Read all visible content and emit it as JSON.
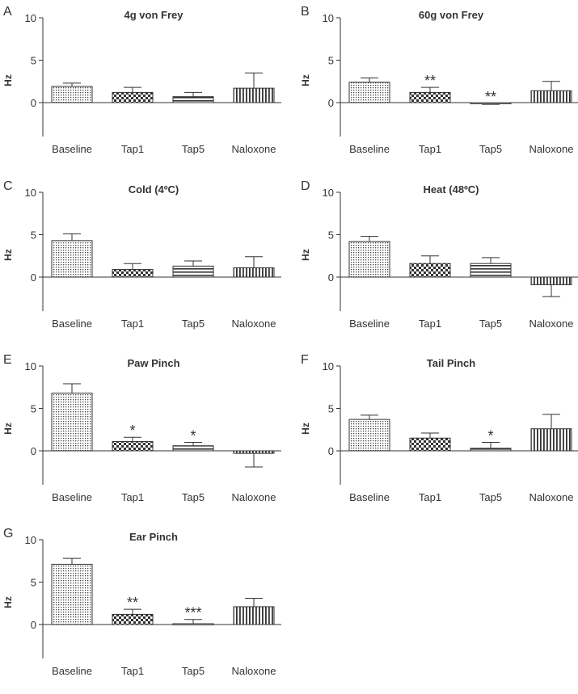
{
  "figure": {
    "colors": {
      "axis": "#333333",
      "bar_stroke": "#333333"
    }
  },
  "chart_data": [
    {
      "type": "bar",
      "panel_letter": "A",
      "title": "4g von Frey",
      "xlabel": "",
      "ylabel": "Hz",
      "ylim": [
        -4,
        10
      ],
      "yticks": [
        0,
        5,
        10
      ],
      "grid": false,
      "categories": [
        "Baseline",
        "Tap1",
        "Tap5",
        "Naloxone"
      ],
      "patterns": [
        "dots",
        "checker",
        "hlines",
        "vlines"
      ],
      "values": [
        1.9,
        1.2,
        0.7,
        1.7
      ],
      "errors": [
        0.4,
        0.6,
        0.5,
        1.8
      ],
      "annotations": [
        "",
        "",
        "",
        ""
      ]
    },
    {
      "type": "bar",
      "panel_letter": "B",
      "title": "60g von Frey",
      "xlabel": "",
      "ylabel": "Hz",
      "ylim": [
        -4,
        10
      ],
      "yticks": [
        0,
        5,
        10
      ],
      "grid": false,
      "categories": [
        "Baseline",
        "Tap1",
        "Tap5",
        "Naloxone"
      ],
      "patterns": [
        "dots",
        "checker",
        "hlines",
        "vlines"
      ],
      "values": [
        2.4,
        1.2,
        -0.1,
        1.4
      ],
      "errors": [
        0.5,
        0.6,
        0.1,
        1.1
      ],
      "annotations": [
        "",
        "**",
        "**",
        ""
      ]
    },
    {
      "type": "bar",
      "panel_letter": "C",
      "title": "Cold (4ºC)",
      "xlabel": "",
      "ylabel": "Hz",
      "ylim": [
        -4,
        10
      ],
      "yticks": [
        0,
        5,
        10
      ],
      "grid": false,
      "categories": [
        "Baseline",
        "Tap1",
        "Tap5",
        "Naloxone"
      ],
      "patterns": [
        "dots",
        "checker",
        "hlines",
        "vlines"
      ],
      "values": [
        4.3,
        0.9,
        1.3,
        1.1
      ],
      "errors": [
        0.8,
        0.7,
        0.6,
        1.3
      ],
      "annotations": [
        "",
        "",
        "",
        ""
      ]
    },
    {
      "type": "bar",
      "panel_letter": "D",
      "title": "Heat (48ºC)",
      "xlabel": "",
      "ylabel": "Hz",
      "ylim": [
        -4,
        10
      ],
      "yticks": [
        0,
        5,
        10
      ],
      "grid": false,
      "categories": [
        "Baseline",
        "Tap1",
        "Tap5",
        "Naloxone"
      ],
      "patterns": [
        "dots",
        "checker",
        "hlines",
        "vlines"
      ],
      "values": [
        4.2,
        1.6,
        1.6,
        -0.9
      ],
      "errors": [
        0.6,
        0.9,
        0.7,
        1.4
      ],
      "annotations": [
        "",
        "",
        "",
        ""
      ]
    },
    {
      "type": "bar",
      "panel_letter": "E",
      "title": "Paw Pinch",
      "xlabel": "",
      "ylabel": "Hz",
      "ylim": [
        -4,
        10
      ],
      "yticks": [
        0,
        5,
        10
      ],
      "grid": false,
      "categories": [
        "Baseline",
        "Tap1",
        "Tap5",
        "Naloxone"
      ],
      "patterns": [
        "dots",
        "checker",
        "hlines",
        "vlines"
      ],
      "values": [
        6.8,
        1.1,
        0.6,
        -0.3
      ],
      "errors": [
        1.1,
        0.5,
        0.4,
        1.6
      ],
      "annotations": [
        "",
        "*",
        "*",
        ""
      ]
    },
    {
      "type": "bar",
      "panel_letter": "F",
      "title": "Tail Pinch",
      "xlabel": "",
      "ylabel": "Hz",
      "ylim": [
        -4,
        10
      ],
      "yticks": [
        0,
        5,
        10
      ],
      "grid": false,
      "categories": [
        "Baseline",
        "Tap1",
        "Tap5",
        "Naloxone"
      ],
      "patterns": [
        "dots",
        "checker",
        "hlines",
        "vlines"
      ],
      "values": [
        3.7,
        1.5,
        0.3,
        2.6
      ],
      "errors": [
        0.5,
        0.6,
        0.7,
        1.7
      ],
      "annotations": [
        "",
        "",
        "*",
        ""
      ]
    },
    {
      "type": "bar",
      "panel_letter": "G",
      "title": "Ear Pinch",
      "xlabel": "",
      "ylabel": "Hz",
      "ylim": [
        -4,
        10
      ],
      "yticks": [
        0,
        5,
        10
      ],
      "grid": false,
      "categories": [
        "Baseline",
        "Tap1",
        "Tap5",
        "Naloxone"
      ],
      "patterns": [
        "dots",
        "checker",
        "hlines",
        "vlines"
      ],
      "values": [
        7.1,
        1.2,
        0.1,
        2.1
      ],
      "errors": [
        0.7,
        0.6,
        0.5,
        1.0
      ],
      "annotations": [
        "",
        "**",
        "***",
        ""
      ]
    }
  ]
}
